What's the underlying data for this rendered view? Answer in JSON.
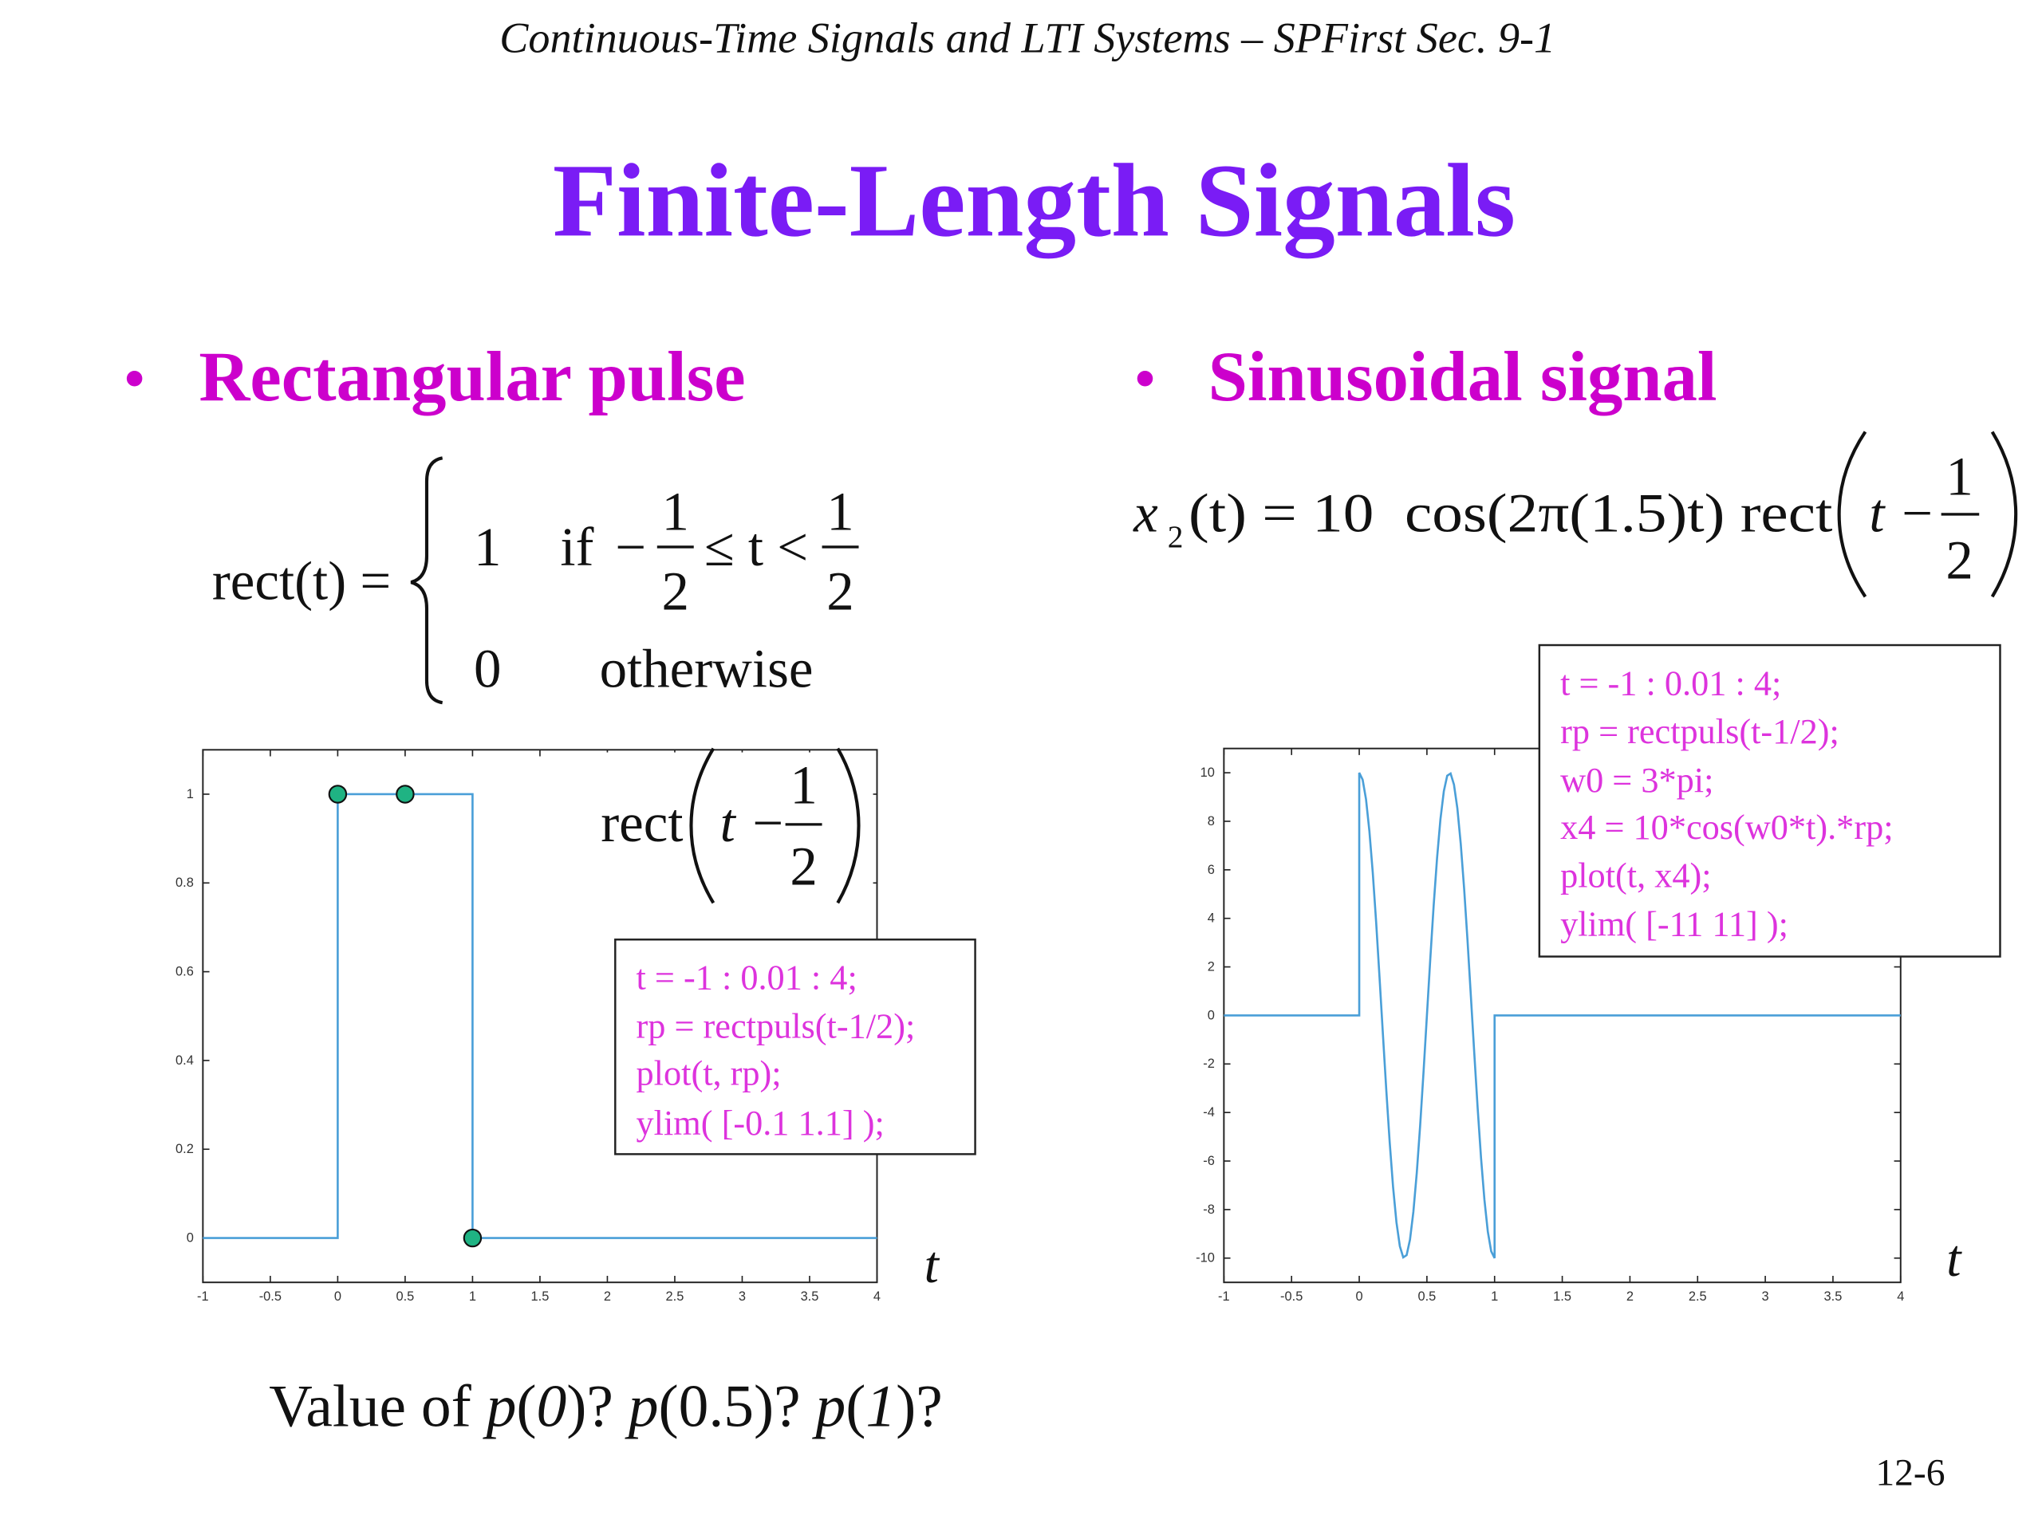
{
  "header": "Continuous-Time Signals and LTI Systems – SPFirst Sec. 9-1",
  "title": "Finite-Length Signals",
  "bullets": [
    "Rectangular pulse",
    "Sinusoidal signal"
  ],
  "eq1": {
    "lhs": "rect(t) =",
    "case1": "1",
    "if": "if",
    "minus": "−",
    "num1": "1",
    "den1": "2",
    "rel": "≤ t <",
    "num2": "1",
    "den2": "2",
    "case0": "0",
    "otherwise": "otherwise"
  },
  "eq2": {
    "x": "x",
    "sub": "2",
    "rhs": "(t) = 10  cos(2π(1.5)t) rect",
    "arg": "t −",
    "num": "1",
    "den": "2"
  },
  "plot_label": {
    "rect": "rect",
    "arg": "t −",
    "num": "1",
    "den": "2"
  },
  "code1": [
    "t = -1 : 0.01 : 4;",
    "rp = rectpuls(t-1/2);",
    "plot(t, rp);",
    "ylim( [-0.1 1.1] );"
  ],
  "code2": [
    "t = -1 : 0.01 : 4;",
    "rp = rectpuls(t-1/2);",
    "w0 = 3*pi;",
    "x4 = 10*cos(w0*t).*rp;",
    "plot(t, x4);",
    "ylim( [-11 11] );"
  ],
  "question": [
    "Value of ",
    "p",
    "(",
    "0",
    ")? ",
    "p",
    "(0.5)? ",
    "p",
    "(",
    "1",
    ")?"
  ],
  "page_number": "12-6",
  "chart_data": [
    {
      "type": "line",
      "xlabel": "t",
      "x": [
        -1,
        0,
        0,
        1,
        1,
        4
      ],
      "values": [
        0,
        0,
        1,
        1,
        0,
        0
      ],
      "color": "#4a9fd8",
      "points": {
        "x": [
          0,
          0.5,
          1
        ],
        "values": [
          1,
          1,
          0
        ],
        "color": "#1fb383"
      },
      "xlim": [
        -1,
        4
      ],
      "ylim": [
        -0.1,
        1.1
      ],
      "xticks": [
        -1,
        -0.5,
        0,
        0.5,
        1,
        1.5,
        2,
        2.5,
        3,
        3.5,
        4
      ],
      "yticks": [
        0,
        0.2,
        0.4,
        0.6,
        0.8,
        1
      ]
    },
    {
      "type": "line",
      "xlabel": "t",
      "x": [
        -1,
        0,
        0,
        0.025,
        0.05,
        0.075,
        0.1,
        0.125,
        0.15,
        0.175,
        0.2,
        0.225,
        0.25,
        0.275,
        0.3,
        0.325,
        0.35,
        0.375,
        0.4,
        0.425,
        0.45,
        0.475,
        0.5,
        0.525,
        0.55,
        0.575,
        0.6,
        0.625,
        0.65,
        0.675,
        0.7,
        0.725,
        0.75,
        0.775,
        0.8,
        0.825,
        0.85,
        0.875,
        0.9,
        0.925,
        0.95,
        0.975,
        1,
        1,
        4
      ],
      "values": [
        0,
        0,
        10,
        9.72,
        8.91,
        7.6,
        5.88,
        3.83,
        1.56,
        -0.78,
        -3.09,
        -5.22,
        -7.07,
        -8.53,
        -9.51,
        -9.97,
        -9.88,
        -9.24,
        -8.09,
        -6.49,
        -4.54,
        -2.33,
        0,
        2.33,
        4.54,
        6.49,
        8.09,
        9.24,
        9.88,
        9.97,
        9.51,
        8.53,
        7.07,
        5.22,
        3.09,
        0.78,
        -1.56,
        -3.83,
        -5.88,
        -7.6,
        -8.91,
        -9.72,
        -10,
        0,
        0
      ],
      "color": "#4a9fd8",
      "xlim": [
        -1,
        4
      ],
      "ylim": [
        -11,
        11
      ],
      "xticks": [
        -1,
        -0.5,
        0,
        0.5,
        1,
        1.5,
        2,
        2.5,
        3,
        3.5,
        4
      ],
      "yticks": [
        -10,
        -8,
        -6,
        -4,
        -2,
        0,
        2,
        4,
        6,
        8,
        10
      ]
    }
  ]
}
